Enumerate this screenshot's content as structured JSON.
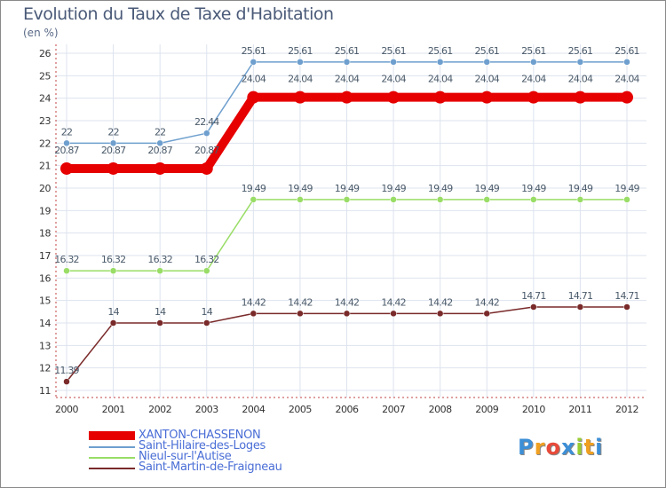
{
  "chart_data": {
    "type": "line",
    "title": "Evolution du Taux de Taxe d'Habitation",
    "subtitle": "(en %)",
    "x": [
      "2000",
      "2001",
      "2002",
      "2003",
      "2004",
      "2005",
      "2006",
      "2007",
      "2008",
      "2009",
      "2010",
      "2011",
      "2012"
    ],
    "ylim": [
      11,
      26
    ],
    "yticks": [
      11,
      12,
      13,
      14,
      15,
      16,
      17,
      18,
      19,
      20,
      21,
      22,
      23,
      24,
      25,
      26
    ],
    "grid": true,
    "series": [
      {
        "name": "XANTON-CHASSENON",
        "color": "#e60000",
        "width": 10,
        "values": [
          20.87,
          20.87,
          20.87,
          20.87,
          24.04,
          24.04,
          24.04,
          24.04,
          24.04,
          24.04,
          24.04,
          24.04,
          24.04
        ],
        "labels": [
          "20.87",
          "20.87",
          "20.87",
          "20.87",
          "24.04",
          "24.04",
          "24.04",
          "24.04",
          "24.04",
          "24.04",
          "24.04",
          "24.04",
          "24.04"
        ]
      },
      {
        "name": "Saint-Hilaire-des-Loges",
        "color": "#6e9fce",
        "width": 1.5,
        "values": [
          22,
          22,
          22,
          22.44,
          25.61,
          25.61,
          25.61,
          25.61,
          25.61,
          25.61,
          25.61,
          25.61,
          25.61
        ],
        "labels": [
          "22",
          "22",
          "22",
          "22.44",
          "25.61",
          "25.61",
          "25.61",
          "25.61",
          "25.61",
          "25.61",
          "25.61",
          "25.61",
          "25.61"
        ]
      },
      {
        "name": "Nieul-sur-l'Autise",
        "color": "#99dd66",
        "width": 1.5,
        "values": [
          16.32,
          16.32,
          16.32,
          16.32,
          19.49,
          19.49,
          19.49,
          19.49,
          19.49,
          19.49,
          19.49,
          19.49,
          19.49
        ],
        "labels": [
          "16.32",
          "16.32",
          "16.32",
          "16.32",
          "19.49",
          "19.49",
          "19.49",
          "19.49",
          "19.49",
          "19.49",
          "19.49",
          "19.49",
          "19.49"
        ]
      },
      {
        "name": "Saint-Martin-de-Fraigneau",
        "color": "#7a2a2a",
        "width": 1.5,
        "values": [
          11.39,
          14,
          14,
          14,
          14.42,
          14.42,
          14.42,
          14.42,
          14.42,
          14.42,
          14.71,
          14.71,
          14.71
        ],
        "labels": [
          "11.39",
          "14",
          "14",
          "14",
          "14.42",
          "14.42",
          "14.42",
          "14.42",
          "14.42",
          "14.42",
          "14.71",
          "14.71",
          "14.71"
        ]
      }
    ]
  },
  "legend": {
    "items": [
      {
        "label": "XANTON-CHASSENON",
        "color": "#e60000"
      },
      {
        "label": "Saint-Hilaire-des-Loges",
        "color": "#6e9fce"
      },
      {
        "label": "Nieul-sur-l'Autise",
        "color": "#99dd66"
      },
      {
        "label": "Saint-Martin-de-Fraigneau",
        "color": "#7a2a2a"
      }
    ]
  },
  "logo": {
    "letters": [
      "P",
      "r",
      "o",
      "x",
      "i",
      "t",
      "i"
    ],
    "colors": [
      "#3d8fd6",
      "#f0a020",
      "#e84a3a",
      "#3d8fd6",
      "#99cc33",
      "#f0a020",
      "#3d8fd6"
    ]
  }
}
